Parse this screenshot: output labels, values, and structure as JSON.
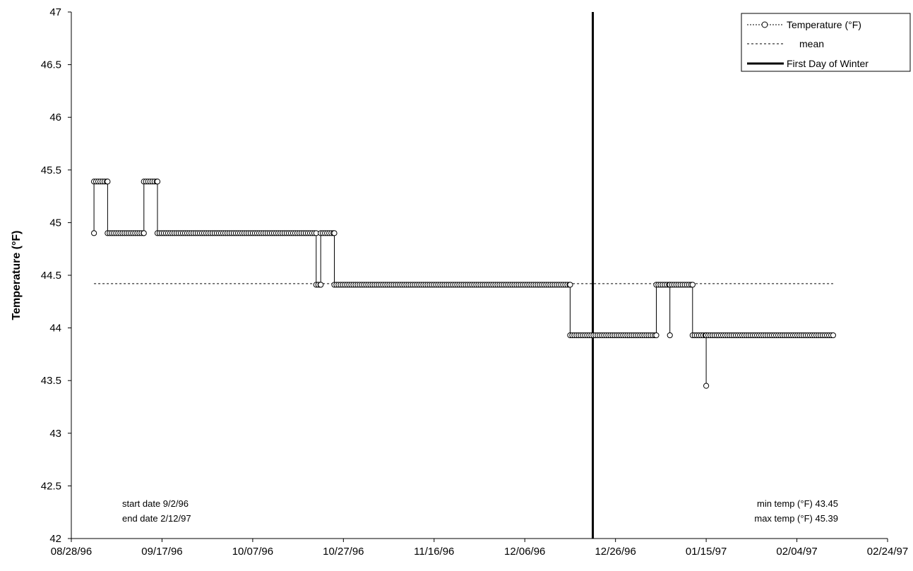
{
  "chart_data": {
    "type": "line",
    "title": "",
    "xlabel": "",
    "ylabel": "Temperature (°F)",
    "ylim": [
      42,
      47
    ],
    "xlim": [
      "08/28/96",
      "02/24/97"
    ],
    "y_ticks": [
      "42",
      "42.5",
      "43",
      "43.5",
      "44",
      "44.5",
      "45",
      "45.5",
      "46",
      "46.5",
      "47"
    ],
    "x_ticks": [
      "08/28/96",
      "09/17/96",
      "10/07/96",
      "10/27/96",
      "11/16/96",
      "12/06/96",
      "12/26/96",
      "01/15/97",
      "02/04/97",
      "02/24/97"
    ],
    "grid": false,
    "legend": {
      "placement": "top-right",
      "entries": [
        "Temperature (°F)",
        "mean",
        "First Day of Winter"
      ]
    },
    "series": [
      {
        "name": "Temperature (°F)",
        "style": "line-with-hollow-markers",
        "points": [
          [
            "09/02/96",
            44.9
          ],
          [
            "09/02/96",
            45.39
          ],
          [
            "09/05/96",
            45.39
          ],
          [
            "09/05/96",
            44.9
          ],
          [
            "09/13/96",
            44.9
          ],
          [
            "09/13/96",
            45.39
          ],
          [
            "09/16/96",
            45.39
          ],
          [
            "09/16/96",
            44.9
          ],
          [
            "10/21/96",
            44.9
          ],
          [
            "10/21/96",
            44.41
          ],
          [
            "10/22/96",
            44.41
          ],
          [
            "10/22/96",
            44.9
          ],
          [
            "10/25/96",
            44.9
          ],
          [
            "10/25/96",
            44.41
          ],
          [
            "12/16/96",
            44.41
          ],
          [
            "12/16/96",
            43.93
          ],
          [
            "01/04/97",
            43.93
          ],
          [
            "01/04/97",
            44.41
          ],
          [
            "01/07/97",
            44.41
          ],
          [
            "01/07/97",
            43.93
          ],
          [
            "01/07/97",
            44.41
          ],
          [
            "01/12/97",
            44.41
          ],
          [
            "01/12/97",
            43.93
          ],
          [
            "01/15/97",
            43.93
          ],
          [
            "01/15/97",
            43.45
          ],
          [
            "01/15/97",
            43.93
          ],
          [
            "02/12/97",
            43.93
          ]
        ]
      },
      {
        "name": "mean",
        "style": "dashed",
        "value": 44.42,
        "x_range": [
          "09/02/96",
          "02/12/97"
        ]
      },
      {
        "name": "First Day of Winter",
        "style": "solid-vertical",
        "x": "12/21/96"
      }
    ],
    "annotations": {
      "left": [
        "start date 9/2/96",
        "end date 2/12/97"
      ],
      "right": [
        "min temp (°F) 43.45",
        "max temp (°F) 45.39"
      ]
    },
    "colors": {
      "line": "#000000",
      "marker_fill": "#ffffff",
      "marker_stroke": "#000000",
      "background": "#ffffff"
    }
  }
}
